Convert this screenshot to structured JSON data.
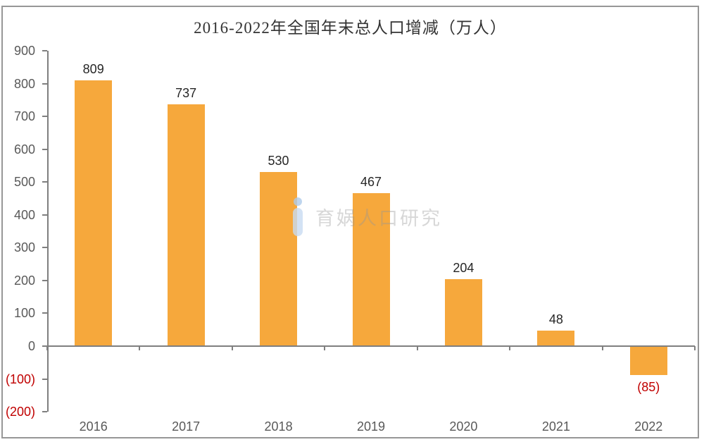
{
  "chart_data": {
    "type": "bar",
    "title": "2016-2022年全国年末总人口增减（万人）",
    "categories": [
      "2016",
      "2017",
      "2018",
      "2019",
      "2020",
      "2021",
      "2022"
    ],
    "values": [
      809,
      737,
      530,
      467,
      204,
      48,
      -85
    ],
    "data_labels": [
      "809",
      "737",
      "530",
      "467",
      "204",
      "48",
      "(85)"
    ],
    "xlabel": "",
    "ylabel": "",
    "ylim": [
      -200,
      900
    ],
    "yticks": [
      {
        "value": 900,
        "label": "900"
      },
      {
        "value": 800,
        "label": "800"
      },
      {
        "value": 700,
        "label": "700"
      },
      {
        "value": 600,
        "label": "600"
      },
      {
        "value": 500,
        "label": "500"
      },
      {
        "value": 400,
        "label": "400"
      },
      {
        "value": 300,
        "label": "300"
      },
      {
        "value": 200,
        "label": "200"
      },
      {
        "value": 100,
        "label": "100"
      },
      {
        "value": 0,
        "label": "0"
      },
      {
        "value": -100,
        "label": "(100)"
      },
      {
        "value": -200,
        "label": "(200)"
      }
    ],
    "grid": false,
    "legend": false,
    "colors": {
      "bar": "#F6A83C",
      "positive_label": "#262626",
      "negative_label": "#C00000",
      "axis": "#7F7F7F",
      "tick_label": "#595959"
    }
  },
  "watermark": {
    "text": "育娲人口研究",
    "logo": "yuwa-bird-logo",
    "logo_color": "#BFD6F0",
    "text_color": "#B9B9B9"
  }
}
